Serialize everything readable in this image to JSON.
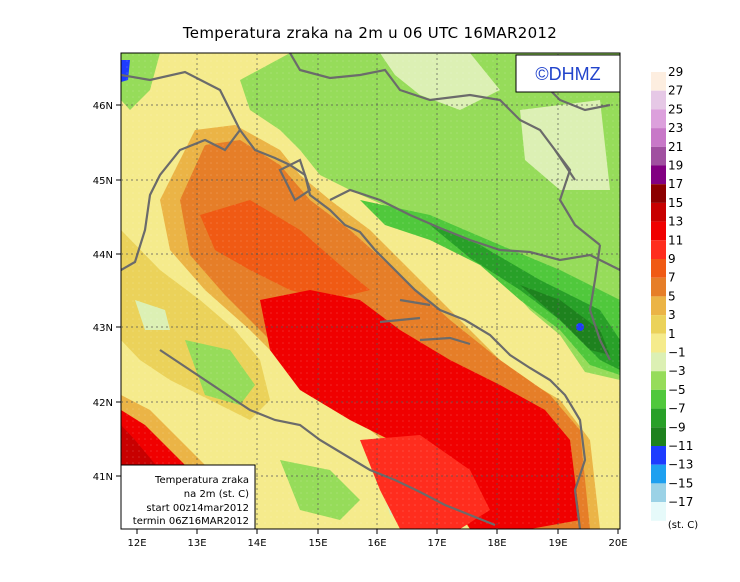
{
  "title": "Temperatura zraka na 2m u 06 UTC 16MAR2012",
  "logo": "©DHMZ",
  "info_box": {
    "line1": "Temperatura zraka",
    "line2": "na 2m (st. C)",
    "line3": "start 00z14mar2012",
    "line4": "termin 06Z16MAR2012"
  },
  "axes": {
    "x_ticks": [
      "12E",
      "13E",
      "14E",
      "15E",
      "16E",
      "17E",
      "18E",
      "19E",
      "20E"
    ],
    "y_ticks": [
      "41N",
      "42N",
      "43N",
      "44N",
      "45N",
      "46N"
    ]
  },
  "legend": {
    "unit": "(st. C)",
    "levels": [
      "29",
      "27",
      "25",
      "23",
      "21",
      "19",
      "17",
      "15",
      "13",
      "11",
      "9",
      "7",
      "5",
      "3",
      "1",
      "−1",
      "−3",
      "−5",
      "−7",
      "−9",
      "−11",
      "−13",
      "−15",
      "−17"
    ],
    "colors": [
      "#fdeee0",
      "#e6c8e6",
      "#dca0dc",
      "#c878c8",
      "#a050a0",
      "#820082",
      "#8c0000",
      "#c80000",
      "#f00000",
      "#ff2d1e",
      "#f05a14",
      "#e67e28",
      "#ebb446",
      "#ebd25a",
      "#f5eb8c",
      "#dcf0b4",
      "#96dc5a",
      "#50c83c",
      "#28a028",
      "#1e821e",
      "#1e3cff",
      "#1ea0f0",
      "#9bd2e6",
      "#e6fafa"
    ]
  }
}
